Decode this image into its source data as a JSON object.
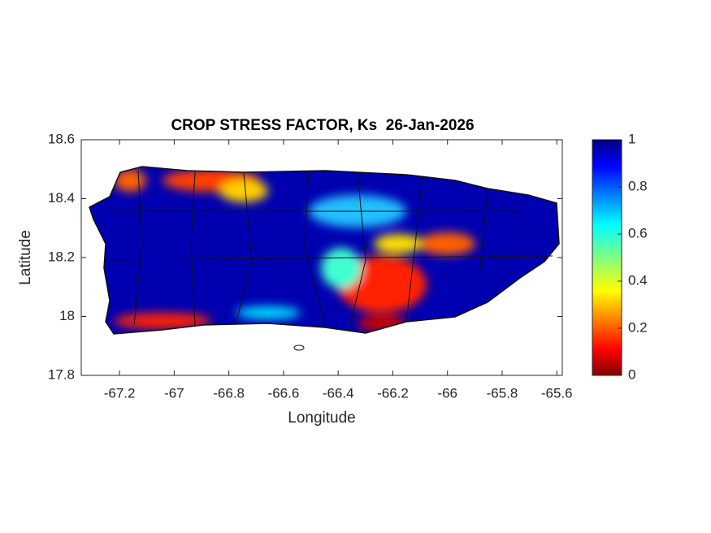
{
  "chart_data": {
    "type": "map",
    "title": "CROP STRESS FACTOR, Ks  26-Jan-2026",
    "xlabel": "Longitude",
    "ylabel": "Latitude",
    "xlim": [
      -67.34,
      -65.58
    ],
    "xticks": [
      -67.2,
      -67,
      -66.8,
      -66.6,
      -66.4,
      -66.2,
      -66,
      -65.8,
      -65.6
    ],
    "ylim": [
      17.8,
      18.6
    ],
    "yticks": [
      17.8,
      18,
      18.2,
      18.4,
      18.6
    ],
    "colorbar": {
      "colormap": "jet",
      "lim": [
        0,
        1
      ],
      "ticks": [
        0,
        0.2,
        0.4,
        0.6,
        0.8,
        1
      ]
    }
  }
}
